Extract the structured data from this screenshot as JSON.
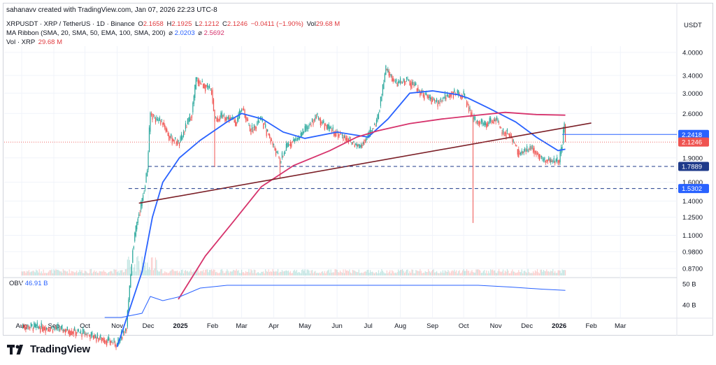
{
  "header": {
    "attribution": "sahanavv created with TradingView.com, Jan 07, 2026 22:23 UTC-8"
  },
  "legend": {
    "symbol": "XRPUSDT · XRP / TetherUS · 1D · Binance",
    "o_label": "O",
    "o_value": "2.1658",
    "h_label": "H",
    "h_value": "2.1925",
    "l_label": "L",
    "l_value": "2.1212",
    "c_label": "C",
    "c_value": "2.1246",
    "change": "−0.0411 (−1.90%)",
    "vol_label": "Vol",
    "vol_value": "29.68 M",
    "ribbon_label": "MA Ribbon (SMA, 20, SMA, 50, EMA, 100, SMA, 200)",
    "ribbon_sep1": "⌀",
    "ribbon_v1": "2.0203",
    "ribbon_sep2": "⌀",
    "ribbon_v2": "2.5692",
    "vol_line_label": "Vol · XRP",
    "vol_line_value": "29.68 M"
  },
  "obv": {
    "label": "OBV",
    "value": "46.91 B"
  },
  "currency": "USDT",
  "brand": {
    "name": "TradingView"
  },
  "colors": {
    "up": "#26a69a",
    "down": "#ef5350",
    "ma_blue": "#2962ff",
    "ma_pink": "#d6336c",
    "trendline": "#7b1f27",
    "dashed": "#1e3a8a",
    "badge_blue": "#2962ff",
    "badge_red": "#ef5350",
    "badge_dark": "#1e3a8a",
    "grid": "#f0f3fa",
    "text": "#131722"
  },
  "chart_data": {
    "type": "candlestick",
    "title": "XRPUSDT · XRP / TetherUS · 1D · Binance",
    "y_scale": "log",
    "y_ticks": [
      "4.0000",
      "3.4000",
      "3.0000",
      "2.6000",
      "1.9000",
      "1.6000",
      "1.4000",
      "1.2500",
      "1.1000",
      "0.9800",
      "0.8700"
    ],
    "y_tick_values": [
      4.0,
      3.4,
      3.0,
      2.6,
      1.9,
      1.6,
      1.4,
      1.25,
      1.1,
      0.98,
      0.87
    ],
    "x_ticks": [
      "Aug",
      "Sep",
      "Oct",
      "Nov",
      "Dec",
      "2025",
      "Feb",
      "Mar",
      "Apr",
      "May",
      "Jun",
      "Jul",
      "Aug",
      "Sep",
      "Oct",
      "Nov",
      "Dec",
      "2026",
      "Feb",
      "Mar"
    ],
    "x_tick_dates": [
      "2024-08-01",
      "2024-09-01",
      "2024-10-01",
      "2024-11-01",
      "2024-12-01",
      "2025-01-01",
      "2025-02-01",
      "2025-03-01",
      "2025-04-01",
      "2025-05-01",
      "2025-06-01",
      "2025-07-01",
      "2025-08-01",
      "2025-09-01",
      "2025-10-01",
      "2025-11-01",
      "2025-12-01",
      "2026-01-01",
      "2026-02-01",
      "2026-03-01"
    ],
    "price_path": [
      [
        "2024-08-01",
        0.58
      ],
      [
        "2024-09-01",
        0.57
      ],
      [
        "2024-10-01",
        0.55
      ],
      [
        "2024-11-01",
        0.51
      ],
      [
        "2024-11-10",
        0.58
      ],
      [
        "2024-11-16",
        1.0
      ],
      [
        "2024-11-21",
        1.25
      ],
      [
        "2024-11-25",
        1.4
      ],
      [
        "2024-11-30",
        1.75
      ],
      [
        "2024-12-03",
        2.6
      ],
      [
        "2024-12-08",
        2.5
      ],
      [
        "2024-12-15",
        2.45
      ],
      [
        "2024-12-21",
        2.2
      ],
      [
        "2024-12-31",
        2.1
      ],
      [
        "2025-01-07",
        2.4
      ],
      [
        "2025-01-12",
        2.6
      ],
      [
        "2025-01-16",
        3.3
      ],
      [
        "2025-01-22",
        3.2
      ],
      [
        "2025-01-31",
        3.05
      ],
      [
        "2025-02-03",
        2.5
      ],
      [
        "2025-02-12",
        2.55
      ],
      [
        "2025-02-24",
        2.45
      ],
      [
        "2025-03-02",
        2.7
      ],
      [
        "2025-03-10",
        2.3
      ],
      [
        "2025-03-19",
        2.5
      ],
      [
        "2025-03-28",
        2.2
      ],
      [
        "2025-04-07",
        1.85
      ],
      [
        "2025-04-15",
        2.1
      ],
      [
        "2025-04-26",
        2.2
      ],
      [
        "2025-05-12",
        2.55
      ],
      [
        "2025-05-22",
        2.35
      ],
      [
        "2025-06-08",
        2.2
      ],
      [
        "2025-06-22",
        2.05
      ],
      [
        "2025-06-30",
        2.2
      ],
      [
        "2025-07-10",
        2.5
      ],
      [
        "2025-07-18",
        3.55
      ],
      [
        "2025-07-28",
        3.2
      ],
      [
        "2025-08-08",
        3.3
      ],
      [
        "2025-08-22",
        3.0
      ],
      [
        "2025-09-05",
        2.8
      ],
      [
        "2025-09-19",
        3.0
      ],
      [
        "2025-10-01",
        2.95
      ],
      [
        "2025-10-10",
        2.5
      ],
      [
        "2025-10-20",
        2.4
      ],
      [
        "2025-11-01",
        2.5
      ],
      [
        "2025-11-06",
        2.3
      ],
      [
        "2025-11-14",
        2.25
      ],
      [
        "2025-11-24",
        1.95
      ],
      [
        "2025-12-06",
        2.05
      ],
      [
        "2025-12-16",
        1.88
      ],
      [
        "2025-12-26",
        1.85
      ],
      [
        "2026-01-01",
        1.86
      ],
      [
        "2026-01-04",
        2.1
      ],
      [
        "2026-01-06",
        2.42
      ],
      [
        "2026-01-07",
        2.1246
      ]
    ],
    "wicks": [
      {
        "date": "2025-02-03",
        "low": 1.78
      },
      {
        "date": "2025-04-07",
        "low": 1.65
      },
      {
        "date": "2025-10-10",
        "low": 1.2
      }
    ],
    "series": [
      {
        "name": "SMA 50",
        "color": "#2962ff",
        "points": [
          [
            "2024-11-01",
            0.5
          ],
          [
            "2024-11-25",
            0.85
          ],
          [
            "2024-12-05",
            1.25
          ],
          [
            "2024-12-15",
            1.6
          ],
          [
            "2024-12-31",
            1.9
          ],
          [
            "2025-01-20",
            2.15
          ],
          [
            "2025-02-15",
            2.45
          ],
          [
            "2025-03-01",
            2.6
          ],
          [
            "2025-03-21",
            2.5
          ],
          [
            "2025-04-10",
            2.28
          ],
          [
            "2025-05-01",
            2.18
          ],
          [
            "2025-06-01",
            2.28
          ],
          [
            "2025-07-01",
            2.2
          ],
          [
            "2025-07-20",
            2.5
          ],
          [
            "2025-08-10",
            3.0
          ],
          [
            "2025-09-01",
            3.05
          ],
          [
            "2025-09-25",
            2.97
          ],
          [
            "2025-10-05",
            2.9
          ],
          [
            "2025-10-25",
            2.7
          ],
          [
            "2025-11-20",
            2.45
          ],
          [
            "2025-12-10",
            2.2
          ],
          [
            "2025-12-31",
            2.0
          ],
          [
            "2026-01-07",
            2.0203
          ]
        ]
      },
      {
        "name": "SMA 200",
        "color": "#d6336c",
        "points": [
          [
            "2024-12-30",
            0.7
          ],
          [
            "2025-01-25",
            0.95
          ],
          [
            "2025-02-20",
            1.2
          ],
          [
            "2025-03-20",
            1.55
          ],
          [
            "2025-04-20",
            1.8
          ],
          [
            "2025-05-25",
            2.0
          ],
          [
            "2025-06-20",
            2.2
          ],
          [
            "2025-07-10",
            2.3
          ],
          [
            "2025-08-10",
            2.42
          ],
          [
            "2025-09-10",
            2.5
          ],
          [
            "2025-10-10",
            2.56
          ],
          [
            "2025-11-10",
            2.62
          ],
          [
            "2025-12-10",
            2.58
          ],
          [
            "2026-01-07",
            2.5692
          ]
        ]
      }
    ],
    "trendline": [
      [
        "2024-11-22",
        1.38
      ],
      [
        "2026-02-01",
        2.43
      ]
    ],
    "horizontal_levels": [
      {
        "value": 2.2418,
        "label": "2.2418",
        "style": "solid"
      },
      {
        "value": 2.1246,
        "label": "2.1246",
        "style": "dotted"
      },
      {
        "value": 1.7889,
        "label": "1.7889",
        "style": "dashed"
      },
      {
        "value": 1.5302,
        "label": "1.5302",
        "style": "dashed"
      }
    ],
    "obv_panel": {
      "y_ticks": [
        "50 B",
        "40 B"
      ],
      "y_tick_values": [
        50,
        40
      ],
      "points": [
        [
          "2024-10-20",
          25
        ],
        [
          "2024-11-05",
          28
        ],
        [
          "2024-11-25",
          36
        ],
        [
          "2024-12-03",
          44
        ],
        [
          "2024-12-15",
          42
        ],
        [
          "2025-01-01",
          44
        ],
        [
          "2025-01-20",
          48
        ],
        [
          "2025-02-15",
          50
        ],
        [
          "2025-03-15",
          49.5
        ],
        [
          "2025-04-15",
          49.8
        ],
        [
          "2025-05-15",
          49.5
        ],
        [
          "2025-06-15",
          49.5
        ],
        [
          "2025-07-18",
          52
        ],
        [
          "2025-08-15",
          50.5
        ],
        [
          "2025-09-15",
          50
        ],
        [
          "2025-10-15",
          49.8
        ],
        [
          "2025-11-15",
          48.5
        ],
        [
          "2025-12-15",
          47.5
        ],
        [
          "2026-01-07",
          46.91
        ]
      ]
    }
  }
}
